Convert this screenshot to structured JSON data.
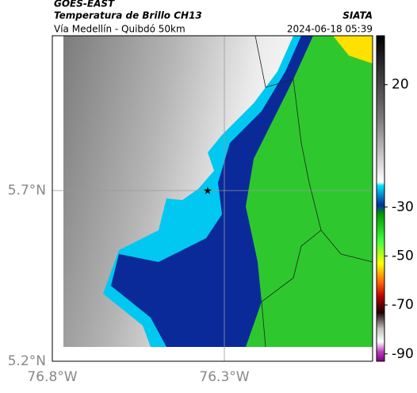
{
  "header": {
    "title": "GOES-EAST",
    "subtitle": "Temperatura de Brillo CH13",
    "route": "Vía Medellín - Quibdó 50km",
    "source": "SIATA",
    "timestamp": "2024-06-18 05:39"
  },
  "map": {
    "lat_labels": [
      "5.7°N",
      "5.2°N"
    ],
    "lon_labels": [
      "76.8°W",
      "76.3°W"
    ]
  },
  "colorbar": {
    "lim": [
      -93,
      40
    ],
    "ticks": [
      20,
      -30,
      -50,
      -70,
      -90
    ]
  }
}
